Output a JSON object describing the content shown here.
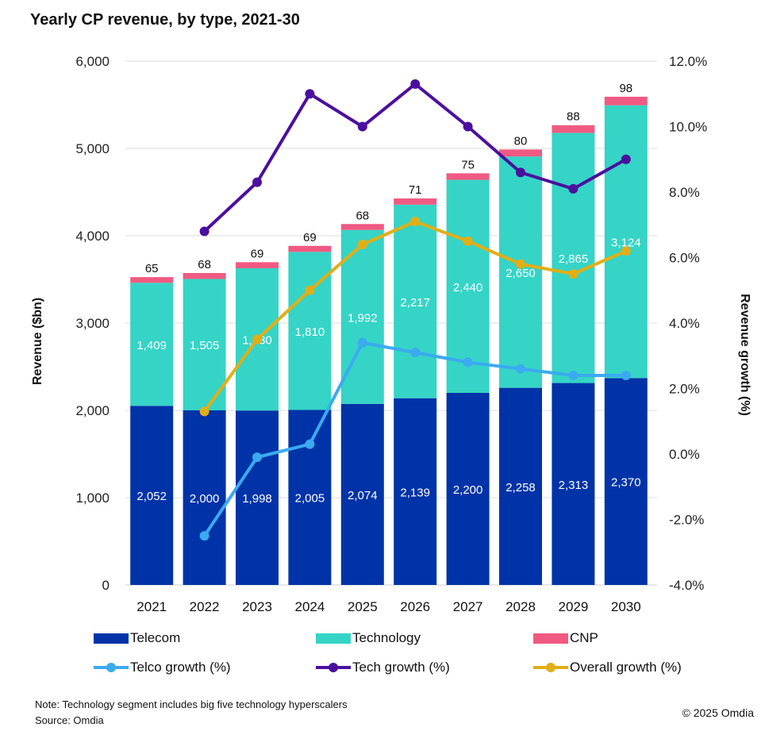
{
  "chart_data": {
    "type": "bar",
    "title": "Yearly CP revenue, by type, 2021-30",
    "xlabel": "",
    "ylabel": "Revenue ($bn)",
    "y2label": "Revenue growth (%)",
    "ylim": [
      0,
      6000
    ],
    "y2lim": [
      -4.0,
      12.0
    ],
    "grid": true,
    "legend_position": "bottom",
    "categories": [
      "2021",
      "2022",
      "2023",
      "2024",
      "2025",
      "2026",
      "2027",
      "2028",
      "2029",
      "2030"
    ],
    "y_ticks": [
      "0",
      "1,000",
      "2,000",
      "3,000",
      "4,000",
      "5,000",
      "6,000"
    ],
    "y_tick_values": [
      0,
      1000,
      2000,
      3000,
      4000,
      5000,
      6000
    ],
    "y2_ticks": [
      "-4.0%",
      "-2.0%",
      "0.0%",
      "2.0%",
      "4.0%",
      "6.0%",
      "8.0%",
      "10.0%",
      "12.0%"
    ],
    "y2_tick_values": [
      -4,
      -2,
      0,
      2,
      4,
      6,
      8,
      10,
      12
    ],
    "bar_series": [
      {
        "name": "Telecom",
        "color": "#0033A8",
        "label_color": "#ffffff",
        "values": [
          2052,
          2000,
          1998,
          2005,
          2074,
          2139,
          2200,
          2258,
          2313,
          2370
        ],
        "labels": [
          "2,052",
          "2,000",
          "1,998",
          "2,005",
          "2,074",
          "2,139",
          "2,200",
          "2,258",
          "2,313",
          "2,370"
        ]
      },
      {
        "name": "Technology",
        "color": "#35D4C6",
        "label_color": "#ffffff",
        "values": [
          1409,
          1505,
          1630,
          1810,
          1992,
          2217,
          2440,
          2650,
          2865,
          3124
        ],
        "labels": [
          "1,409",
          "1,505",
          "1,630",
          "1,810",
          "1,992",
          "2,217",
          "2,440",
          "2,650",
          "2,865",
          "3,124"
        ]
      },
      {
        "name": "CNP",
        "color": "#F05A82",
        "label_color": "#111111",
        "values": [
          65,
          68,
          69,
          69,
          68,
          71,
          75,
          80,
          88,
          98
        ],
        "labels": [
          "65",
          "68",
          "69",
          "69",
          "68",
          "71",
          "75",
          "80",
          "88",
          "98"
        ]
      }
    ],
    "line_series": [
      {
        "name": "Telco growth (%)",
        "color": "#3BAAF0",
        "axis": "right",
        "values": [
          null,
          -2.5,
          -0.1,
          0.3,
          3.4,
          3.1,
          2.8,
          2.6,
          2.4,
          2.4
        ]
      },
      {
        "name": "Tech growth (%)",
        "color": "#4B0F9E",
        "axis": "right",
        "values": [
          null,
          6.8,
          8.3,
          11.0,
          10.0,
          11.3,
          10.0,
          8.6,
          8.1,
          9.0
        ]
      },
      {
        "name": "Overall growth (%)",
        "color": "#E2AE17",
        "axis": "right",
        "values": [
          null,
          1.3,
          3.5,
          5.0,
          6.4,
          7.1,
          6.5,
          5.8,
          5.5,
          6.2
        ]
      }
    ]
  },
  "legend": {
    "items": [
      {
        "label": "Telecom",
        "kind": "bar",
        "color": "#0033A8"
      },
      {
        "label": "Technology",
        "kind": "bar",
        "color": "#35D4C6"
      },
      {
        "label": "CNP",
        "kind": "bar",
        "color": "#F05A82"
      },
      {
        "label": "Telco growth (%)",
        "kind": "line",
        "color": "#3BAAF0"
      },
      {
        "label": "Tech growth (%)",
        "kind": "line",
        "color": "#4B0F9E"
      },
      {
        "label": "Overall growth (%)",
        "kind": "line",
        "color": "#E2AE17"
      }
    ]
  },
  "footer": {
    "note": "Note: Technology segment includes big five technology hyperscalers",
    "source": "Source: Omdia",
    "copyright": "© 2025 Omdia"
  }
}
